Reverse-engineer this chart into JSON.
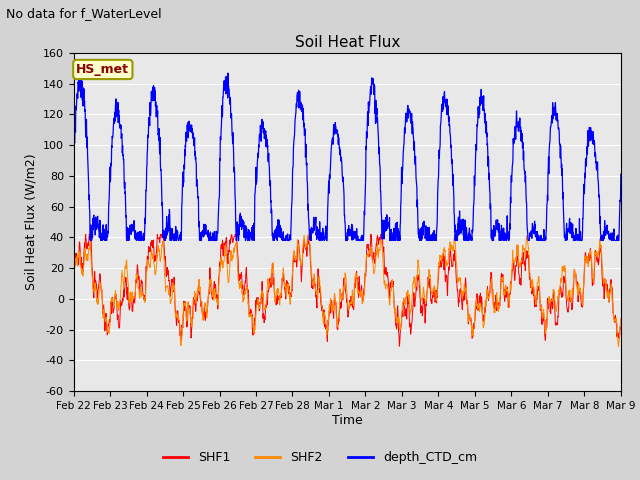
{
  "title": "Soil Heat Flux",
  "suptitle": "No data for f_WaterLevel",
  "ylabel": "Soil Heat Flux (W/m2)",
  "xlabel": "Time",
  "ylim": [
    -60,
    160
  ],
  "background_color": "#d3d3d3",
  "plot_bg_color": "#e8e8e8",
  "legend_label": "HS_met",
  "legend_bg": "#ffffcc",
  "legend_edge": "#999900",
  "legend_text_color": "#8b0000",
  "series": [
    "SHF1",
    "SHF2",
    "depth_CTD_cm"
  ],
  "series_colors": [
    "#ff0000",
    "#ff8800",
    "#0000ff"
  ],
  "xtick_labels": [
    "Feb 22",
    "Feb 23",
    "Feb 24",
    "Feb 25",
    "Feb 26",
    "Feb 27",
    "Feb 28",
    "Mar 1",
    "Mar 2",
    "Mar 3",
    "Mar 4",
    "Mar 5",
    "Mar 6",
    "Mar 7",
    "Mar 8",
    "Mar 9"
  ],
  "ytick_labels": [
    -60,
    -40,
    -20,
    0,
    20,
    40,
    60,
    80,
    100,
    120,
    140,
    160
  ],
  "grid_color": "#ffffff",
  "n_points": 2000
}
